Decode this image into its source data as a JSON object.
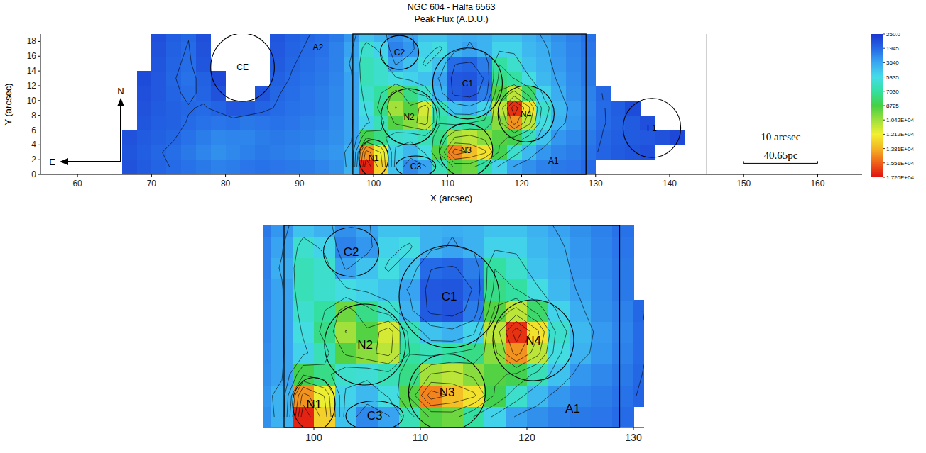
{
  "chart_data": {
    "type": "heatmap",
    "title": "NGC 604 - Halfa 6563",
    "subtitle": "Peak Flux (A.D.U.)",
    "x_label": "X (arcsec)",
    "y_label": "Y (arcsec)",
    "xlim": [
      55,
      166
    ],
    "ylim": [
      0,
      19
    ],
    "xticks": [
      60,
      70,
      80,
      90,
      100,
      110,
      120,
      130,
      140,
      150,
      160
    ],
    "yticks": [
      0,
      2,
      4,
      6,
      8,
      10,
      12,
      14,
      16,
      18
    ],
    "cells": {
      "x": [
        65,
        67,
        69,
        71,
        73,
        75,
        77,
        79,
        81,
        83,
        85,
        87,
        89,
        91,
        93,
        95,
        97,
        99,
        101,
        103,
        105,
        107,
        109,
        111,
        113,
        115,
        117,
        119,
        121,
        123,
        125,
        127,
        129,
        131,
        133,
        135,
        137,
        139,
        141
      ],
      "y": [
        1,
        3,
        5,
        7,
        9,
        11,
        13,
        15,
        17,
        19
      ],
      "values": [
        [
          null,
          1200,
          1500,
          1800,
          2000,
          2200,
          2400,
          2600,
          2500,
          2300,
          2200,
          2300,
          2400,
          2500,
          2700,
          3000,
          4000,
          16800,
          13000,
          4500,
          2800,
          3500,
          6500,
          9000,
          9500,
          7000,
          5000,
          3500,
          3000,
          2600,
          2400,
          2300,
          2000,
          null,
          null,
          null,
          null,
          null,
          null
        ],
        [
          null,
          1300,
          1600,
          1900,
          2100,
          2400,
          2700,
          3000,
          2800,
          2600,
          2400,
          2500,
          2600,
          2800,
          3000,
          3200,
          4000,
          14500,
          12000,
          5000,
          4200,
          5500,
          9000,
          14800,
          13500,
          12500,
          8500,
          6000,
          4200,
          3200,
          2700,
          2500,
          2200,
          1800,
          1500,
          1300,
          1100,
          null,
          null
        ],
        [
          null,
          1200,
          1500,
          1700,
          1900,
          2200,
          2500,
          2800,
          2700,
          2700,
          2500,
          2400,
          2500,
          2600,
          2800,
          3000,
          3500,
          8500,
          7500,
          6000,
          5800,
          6500,
          7500,
          10500,
          11000,
          10000,
          9000,
          8500,
          6500,
          4500,
          3200,
          2800,
          2400,
          1900,
          1600,
          1500,
          1400,
          1200,
          900
        ],
        [
          null,
          null,
          1300,
          1600,
          1700,
          2000,
          2200,
          2300,
          2200,
          2400,
          2300,
          2200,
          2300,
          2500,
          2600,
          2900,
          3500,
          5000,
          6500,
          9000,
          10000,
          11000,
          7000,
          6500,
          7000,
          7500,
          10000,
          14500,
          11000,
          5500,
          4000,
          3200,
          2600,
          2000,
          1700,
          1500,
          1100,
          null,
          null
        ],
        [
          null,
          null,
          1200,
          1500,
          1700,
          1900,
          2000,
          1800,
          1400,
          1500,
          1800,
          2000,
          2200,
          2300,
          2500,
          2800,
          3500,
          5500,
          7500,
          10500,
          9000,
          11500,
          6500,
          4500,
          4000,
          5000,
          11000,
          16500,
          12500,
          6000,
          4200,
          3300,
          2700,
          2000,
          1600,
          1000,
          null,
          null,
          null
        ],
        [
          null,
          null,
          1100,
          1400,
          1800,
          2100,
          1800,
          1200,
          null,
          null,
          1300,
          1900,
          2100,
          2300,
          2500,
          2800,
          3500,
          6000,
          7000,
          9500,
          7500,
          6000,
          4000,
          1500,
          1200,
          2500,
          9000,
          11000,
          8000,
          5000,
          3800,
          3000,
          2600,
          1900,
          null,
          null,
          null,
          null,
          null
        ],
        [
          null,
          null,
          1000,
          1400,
          1900,
          2200,
          1700,
          900,
          null,
          null,
          null,
          1700,
          2000,
          2200,
          2400,
          2700,
          3500,
          6500,
          6000,
          5500,
          5000,
          4500,
          3500,
          1400,
          1300,
          2000,
          7500,
          7000,
          5500,
          4200,
          3500,
          2900,
          2400,
          null,
          null,
          null,
          null,
          null,
          null
        ],
        [
          null,
          null,
          null,
          1300,
          1800,
          2100,
          1300,
          null,
          null,
          null,
          null,
          1500,
          1900,
          2100,
          2300,
          2600,
          3800,
          6500,
          6000,
          3500,
          4500,
          5500,
          4500,
          2000,
          1800,
          2500,
          7000,
          6000,
          4500,
          4000,
          3300,
          2800,
          2400,
          null,
          null,
          null,
          null,
          null,
          null
        ],
        [
          null,
          null,
          null,
          1200,
          1700,
          2000,
          1200,
          null,
          null,
          null,
          null,
          1400,
          1800,
          2000,
          2200,
          2600,
          3500,
          6000,
          5000,
          2600,
          3200,
          5000,
          5500,
          4000,
          3500,
          4000,
          5000,
          5000,
          4200,
          3800,
          3200,
          2700,
          2300,
          null,
          null,
          null,
          null,
          null,
          null
        ],
        [
          null,
          null,
          null,
          1100,
          1600,
          1900,
          1100,
          null,
          null,
          null,
          null,
          1300,
          1700,
          1900,
          2100,
          2400,
          3200,
          4500,
          4000,
          3000,
          3500,
          4500,
          4500,
          4000,
          3800,
          4000,
          4500,
          4500,
          4000,
          3500,
          3000,
          2600,
          2200,
          null,
          null,
          null,
          null,
          null,
          null
        ]
      ]
    },
    "colorbar": {
      "range": [
        250,
        17200
      ],
      "ticks": [
        {
          "value": 250,
          "label": "250.0"
        },
        1945,
        3640,
        5335,
        7030,
        8725,
        {
          "value": 10420,
          "label": "1.042E+04"
        },
        {
          "value": 12115,
          "label": "1.212E+04"
        },
        {
          "value": 13810,
          "label": "1.381E+04"
        },
        {
          "value": 15505,
          "label": "1.551E+04"
        },
        {
          "value": 17200,
          "label": "1.720E+04"
        }
      ]
    },
    "regions": [
      {
        "label": "CE",
        "x": 82.3,
        "y": 14.5,
        "rx": 4.3,
        "ry": 4.6
      },
      {
        "label": "C2",
        "x": 103.5,
        "y": 16.5,
        "rx": 2.6,
        "ry": 2.3
      },
      {
        "label": "C1",
        "x": 112.7,
        "y": 12.3,
        "rx": 4.7,
        "ry": 4.8
      },
      {
        "label": "N2",
        "x": 104.8,
        "y": 7.8,
        "rx": 3.8,
        "ry": 3.8
      },
      {
        "label": "N4",
        "x": 120.6,
        "y": 8.2,
        "rx": 3.8,
        "ry": 3.8
      },
      {
        "label": "N1",
        "x": 100,
        "y": 2.2,
        "rx": 2.0,
        "ry": 2.5
      },
      {
        "label": "C3",
        "x": 105.7,
        "y": 1.1,
        "rx": 2.7,
        "ry": 1.4
      },
      {
        "label": "N3",
        "x": 112.5,
        "y": 3.3,
        "rx": 3.6,
        "ry": 3.6
      },
      {
        "label": "F1",
        "x": 137.6,
        "y": 6.3,
        "rx": 3.9,
        "ry": 4.0
      }
    ],
    "annotations": [
      {
        "text": "A1",
        "x": 124.3,
        "y": 1.8
      },
      {
        "text": "A2",
        "x": 92.5,
        "y": 17.2
      }
    ],
    "box": {
      "x": [
        97.2,
        128.7
      ],
      "y": [
        0,
        19
      ]
    },
    "vline_x": 145,
    "scale_bar": {
      "x": [
        150,
        160
      ],
      "y": 1.5,
      "label": "10 arcsec",
      "sublabel": "40.65pc"
    },
    "compass": {
      "north": "N",
      "east": "E"
    },
    "inset": {
      "xlim": [
        95.2,
        131
      ],
      "ylim": [
        0,
        19
      ],
      "xticks": [
        100,
        110,
        120,
        130
      ]
    }
  }
}
